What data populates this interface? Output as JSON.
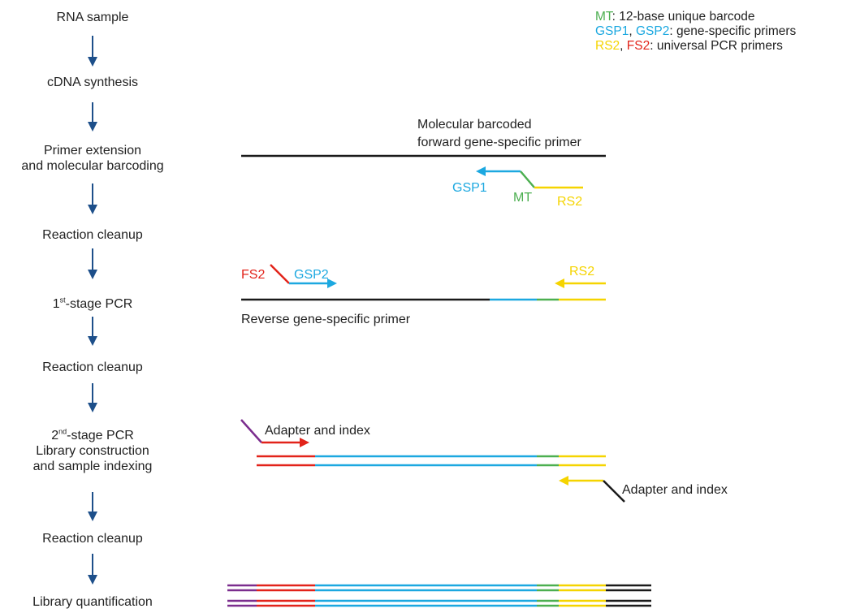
{
  "colors": {
    "barcode": "#4caf50",
    "gsp": "#1ca8e0",
    "rs2": "#f5d400",
    "fs2": "#e2231a",
    "adapter_purple": "#7b2d8e",
    "template": "#1a1a1a",
    "arrow": "#1d4f8a"
  },
  "workflow": {
    "steps": [
      {
        "label": "RNA sample"
      },
      {
        "label": "cDNA synthesis"
      },
      {
        "label_line1": "Primer extension",
        "label_line2": "and molecular barcoding"
      },
      {
        "label": "Reaction cleanup"
      },
      {
        "label_prefix": "1",
        "label_sup": "st",
        "label_suffix": "-stage PCR"
      },
      {
        "label": "Reaction cleanup"
      },
      {
        "label_prefix": "2",
        "label_sup": "nd",
        "label_suffix": "-stage PCR",
        "label_line2": "Library construction",
        "label_line3": "and sample indexing"
      },
      {
        "label": "Reaction cleanup"
      },
      {
        "label": "Library quantification"
      }
    ]
  },
  "legend": {
    "line1_key": "MT",
    "line1_text": ": 12-base unique barcode",
    "line2_key1": "GSP1",
    "line2_sep": ", ",
    "line2_key2": "GSP2",
    "line2_text": ": gene-specific primers",
    "line3_key1": "RS2",
    "line3_sep": ", ",
    "line3_key2": "FS2",
    "line3_text": ": universal PCR primers"
  },
  "diagram": {
    "barcoding_title_line1": "Molecular barcoded",
    "barcoding_title_line2": "forward gene-specific primer",
    "gsp1": "GSP1",
    "mt": "MT",
    "rs2": "RS2",
    "fs2": "FS2",
    "gsp2": "GSP2",
    "reverse_primer": "Reverse gene-specific primer",
    "adapter_index_top": "Adapter and index",
    "adapter_index_bottom": "Adapter and index"
  }
}
